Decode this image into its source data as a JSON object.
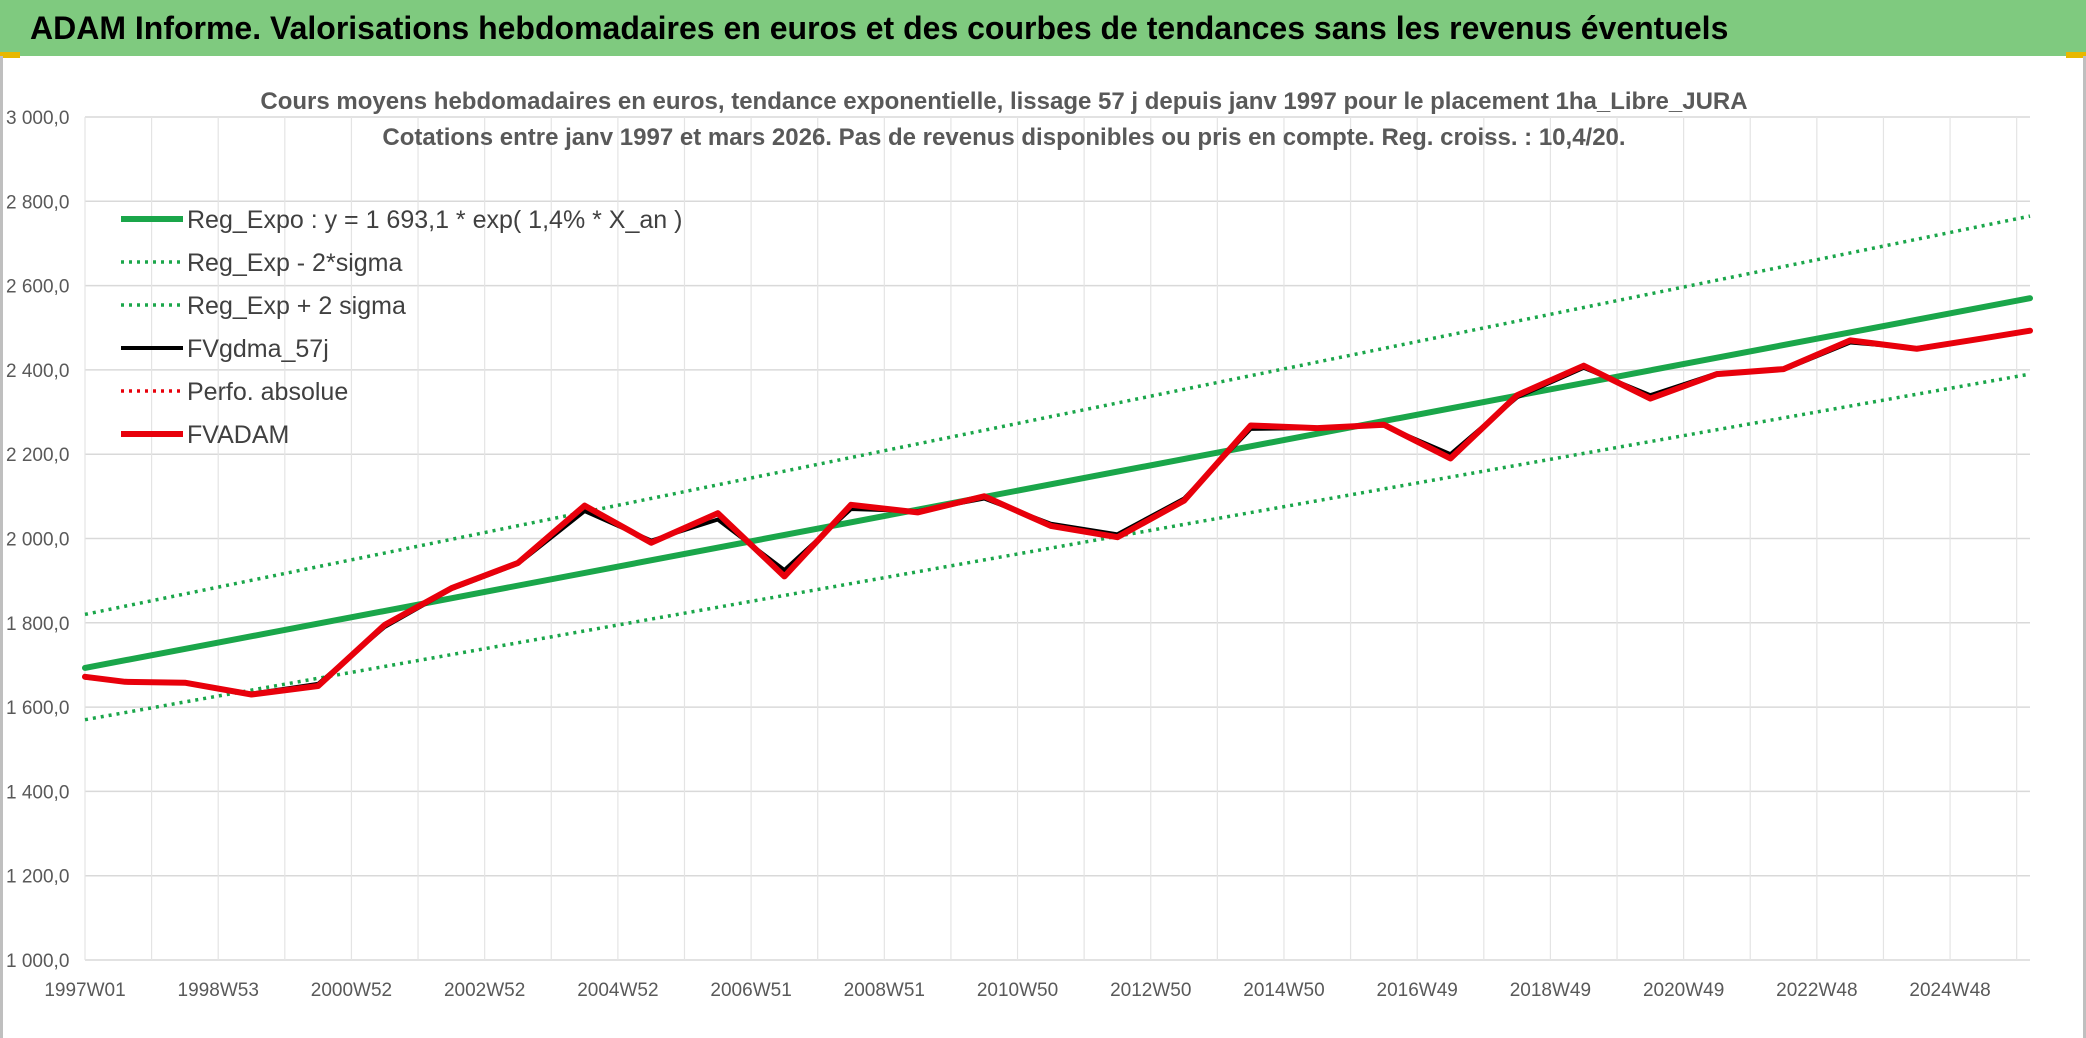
{
  "header": {
    "title": "ADAM Informe. Valorisations hebdomadaires en euros et des courbes de tendances sans les revenus éventuels"
  },
  "chart_data": {
    "type": "line",
    "title": "Cours moyens hebdomadaires en euros, tendance exponentielle, lissage 57 j depuis janv 1997 pour le placement 1ha_Libre_JURA",
    "subtitle": "Cotations entre janv 1997 et mars 2026. Pas de revenus disponibles ou pris en compte. Reg. croiss. : 10,4/20.",
    "ylim": [
      1000,
      3000
    ],
    "yticks": [
      "3 000,0",
      "2 800,0",
      "2 600,0",
      "2 400,0",
      "2 200,0",
      "2 000,0",
      "1 800,0",
      "1 600,0",
      "1 400,0",
      "1 200,0",
      "1 000,0"
    ],
    "ytick_values": [
      3000,
      2800,
      2600,
      2400,
      2200,
      2000,
      1800,
      1600,
      1400,
      1200,
      1000
    ],
    "xlim": [
      1997.0,
      2026.2
    ],
    "xticks": [
      "1997W01",
      "1998W53",
      "2000W52",
      "2002W52",
      "2004W52",
      "2006W51",
      "2008W51",
      "2010W50",
      "2012W50",
      "2014W50",
      "2016W49",
      "2018W49",
      "2020W49",
      "2022W48",
      "2024W48"
    ],
    "xtick_years": [
      1997,
      1999,
      2001,
      2003,
      2005,
      2007,
      2009,
      2011,
      2013,
      2015,
      2017,
      2019,
      2021,
      2023,
      2025
    ],
    "grid": true,
    "legend_position": "top-left",
    "series": [
      {
        "name": "Reg_Expo : y = 1 693,1 * exp( 1,4% *  X_an )",
        "color": "#1aa64a",
        "style": "solid-thick",
        "x": [
          1997.0,
          2026.2
        ],
        "y": [
          1693.1,
          2570
        ]
      },
      {
        "name": "Reg_Exp - 2*sigma",
        "color": "#1aa64a",
        "style": "dotted",
        "x": [
          1997.0,
          2026.2
        ],
        "y": [
          1570,
          2390
        ]
      },
      {
        "name": "Reg_Exp + 2 sigma",
        "color": "#1aa64a",
        "style": "dotted",
        "x": [
          1997.0,
          2026.2
        ],
        "y": [
          1820,
          2765
        ]
      },
      {
        "name": "FVgdma_57j",
        "color": "#000000",
        "style": "solid",
        "x": [
          1997.0,
          1997.6,
          1998.5,
          1999.5,
          2000.5,
          2001.5,
          2002.5,
          2003.5,
          2004.5,
          2005.5,
          2006.5,
          2007.5,
          2008.5,
          2009.5,
          2010.5,
          2011.5,
          2012.5,
          2013.5,
          2014.5,
          2015.5,
          2016.5,
          2017.5,
          2018.5,
          2019.5,
          2020.5,
          2021.5,
          2022.5,
          2023.5,
          2024.5,
          2025.5,
          2026.2
        ],
        "y": [
          1670,
          1660,
          1658,
          1632,
          1655,
          1790,
          1880,
          1940,
          2065,
          1995,
          2045,
          1925,
          2070,
          2065,
          2095,
          2035,
          2010,
          2095,
          2260,
          2262,
          2268,
          2200,
          2335,
          2405,
          2340,
          2392,
          2400,
          2465,
          2452,
          2475,
          2492
        ]
      },
      {
        "name": "Perfo. absolue",
        "color": "#e8000b",
        "style": "dotted",
        "x": [],
        "y": []
      },
      {
        "name": "FVADAM",
        "color": "#e8000b",
        "style": "solid-thick",
        "x": [
          1997.0,
          1997.6,
          1998.5,
          1999.5,
          2000.5,
          2001.5,
          2002.5,
          2003.5,
          2004.5,
          2005.5,
          2006.5,
          2007.5,
          2008.5,
          2009.5,
          2010.5,
          2011.5,
          2012.5,
          2013.5,
          2014.5,
          2015.5,
          2016.5,
          2017.5,
          2018.5,
          2019.5,
          2020.5,
          2021.5,
          2022.5,
          2023.5,
          2024.5,
          2025.5,
          2026.2
        ],
        "y": [
          1672,
          1660,
          1658,
          1630,
          1650,
          1795,
          1882,
          1942,
          2078,
          1990,
          2060,
          1910,
          2080,
          2062,
          2100,
          2030,
          2003,
          2090,
          2268,
          2262,
          2270,
          2190,
          2340,
          2410,
          2332,
          2390,
          2402,
          2470,
          2450,
          2475,
          2493
        ]
      }
    ]
  }
}
